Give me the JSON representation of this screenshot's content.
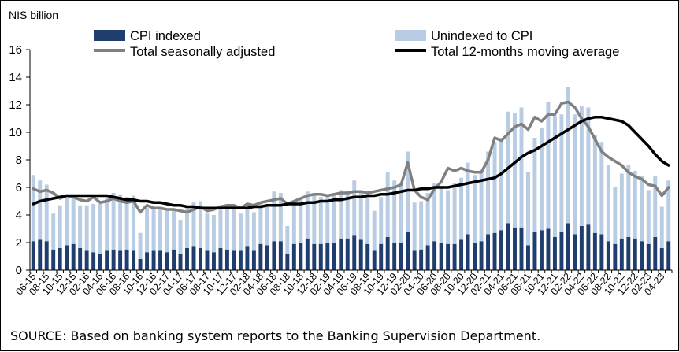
{
  "chart_data": {
    "type": "bar",
    "unit_label": "NIS billion",
    "ylim": [
      0,
      16
    ],
    "yticks": [
      "0",
      "2",
      "4",
      "6",
      "8",
      "10",
      "12",
      "14",
      "16"
    ],
    "x": [
      "06-15",
      "07-15",
      "08-15",
      "09-15",
      "10-15",
      "11-15",
      "12-15",
      "01-16",
      "02-16",
      "03-16",
      "04-16",
      "05-16",
      "06-16",
      "07-16",
      "08-16",
      "09-16",
      "10-16",
      "11-16",
      "12-16",
      "01-17",
      "02-17",
      "03-17",
      "04-17",
      "05-17",
      "06-17",
      "07-17",
      "08-17",
      "09-17",
      "10-17",
      "11-17",
      "12-17",
      "01-18",
      "02-18",
      "03-18",
      "04-18",
      "05-18",
      "06-18",
      "07-18",
      "08-18",
      "09-18",
      "10-18",
      "11-18",
      "12-18",
      "01-19",
      "02-19",
      "03-19",
      "04-19",
      "05-19",
      "06-19",
      "07-19",
      "08-19",
      "09-19",
      "10-19",
      "11-19",
      "12-19",
      "01-20",
      "02-20",
      "03-20",
      "04-20",
      "05-20",
      "06-20",
      "07-20",
      "08-20",
      "09-20",
      "10-20",
      "11-20",
      "12-20",
      "01-21",
      "02-21",
      "03-21",
      "04-21",
      "05-21",
      "06-21",
      "07-21",
      "08-21",
      "09-21",
      "10-21",
      "11-21",
      "12-21",
      "01-22",
      "02-22",
      "03-22",
      "04-22",
      "05-22",
      "06-22",
      "07-22",
      "08-22",
      "09-22",
      "10-22",
      "11-22",
      "12-22",
      "01-23",
      "02-23",
      "03-23",
      "04-23",
      "05-23"
    ],
    "xtick_labels": [
      "06-15",
      "08-15",
      "10-15",
      "12-15",
      "02-16",
      "04-16",
      "06-16",
      "08-16",
      "10-16",
      "12-16",
      "02-17",
      "04-17",
      "06-17",
      "08-17",
      "10-17",
      "12-17",
      "02-18",
      "04-18",
      "06-18",
      "08-18",
      "10-18",
      "12-18",
      "02-19",
      "04-19",
      "06-19",
      "08-19",
      "10-19",
      "12-19",
      "02-20",
      "04-20",
      "06-20",
      "08-20",
      "10-20",
      "12-20",
      "02-21",
      "04-21",
      "06-21",
      "08-21",
      "10-21",
      "12-21",
      "02-22",
      "04-22",
      "06-22",
      "08-22",
      "10-22",
      "12-22",
      "02-23",
      "04-23"
    ],
    "series": [
      {
        "name": "CPI indexed",
        "kind": "stacked-bar",
        "color": "#1f3d6e",
        "values": [
          2.1,
          2.2,
          2.1,
          1.5,
          1.6,
          1.8,
          1.9,
          1.6,
          1.4,
          1.3,
          1.2,
          1.4,
          1.5,
          1.4,
          1.5,
          1.4,
          0.8,
          1.3,
          1.4,
          1.4,
          1.3,
          1.5,
          1.2,
          1.6,
          1.7,
          1.6,
          1.4,
          1.3,
          1.6,
          1.5,
          1.4,
          1.4,
          1.7,
          1.4,
          1.9,
          1.8,
          2.1,
          2.1,
          1.2,
          1.9,
          2.0,
          2.3,
          1.9,
          1.9,
          2.0,
          2.0,
          2.3,
          2.3,
          2.5,
          2.2,
          1.9,
          1.4,
          1.9,
          2.4,
          2.0,
          2.0,
          2.8,
          1.4,
          1.5,
          1.8,
          2.1,
          2.0,
          1.9,
          1.9,
          2.2,
          2.6,
          2.0,
          2.1,
          2.6,
          2.7,
          2.9,
          3.4,
          3.1,
          3.1,
          1.8,
          2.8,
          2.9,
          3.0,
          2.4,
          2.8,
          3.4,
          2.6,
          3.2,
          3.3,
          2.7,
          2.6,
          2.1,
          1.9,
          2.3,
          2.4,
          2.3,
          2.1,
          1.9,
          2.4,
          1.6,
          2.1
        ]
      },
      {
        "name": "Unindexed to CPI",
        "kind": "stacked-bar",
        "color": "#b8cce4",
        "values": [
          4.8,
          4.3,
          4.1,
          2.6,
          3.1,
          3.4,
          3.3,
          3.1,
          3.3,
          3.5,
          3.6,
          3.8,
          4.1,
          4.1,
          3.8,
          4.0,
          1.9,
          3.2,
          3.1,
          3.1,
          3.0,
          2.9,
          2.4,
          2.9,
          3.2,
          3.4,
          2.7,
          2.7,
          3.1,
          3.2,
          3.3,
          2.7,
          2.9,
          2.8,
          2.9,
          3.0,
          3.6,
          3.5,
          2.0,
          3.0,
          3.1,
          3.4,
          3.6,
          3.4,
          3.3,
          3.5,
          3.5,
          3.4,
          4.0,
          3.6,
          3.4,
          2.9,
          3.4,
          4.7,
          4.5,
          4.3,
          5.8,
          3.5,
          3.5,
          3.8,
          4.2,
          4.1,
          3.9,
          4.4,
          4.5,
          5.2,
          4.9,
          5.1,
          6.0,
          6.6,
          6.7,
          8.1,
          8.3,
          8.7,
          5.3,
          6.8,
          7.4,
          9.2,
          8.8,
          8.5,
          9.9,
          8.7,
          8.7,
          8.5,
          7.1,
          6.7,
          5.5,
          4.1,
          4.7,
          5.2,
          4.9,
          4.7,
          3.9,
          4.4,
          3.0,
          4.4
        ]
      },
      {
        "name": "Total seasonally adjusted",
        "kind": "line",
        "color": "#808080",
        "values": [
          5.9,
          5.7,
          5.8,
          5.6,
          5.2,
          5.4,
          5.3,
          5.1,
          5.0,
          5.3,
          4.9,
          5.0,
          5.2,
          5.0,
          4.9,
          5.0,
          4.2,
          4.7,
          4.5,
          4.5,
          4.4,
          4.4,
          4.3,
          4.2,
          4.4,
          4.6,
          4.3,
          4.4,
          4.6,
          4.7,
          4.7,
          4.5,
          4.8,
          4.7,
          4.9,
          5.0,
          5.1,
          5.2,
          4.8,
          5.0,
          5.2,
          5.4,
          5.5,
          5.5,
          5.4,
          5.5,
          5.6,
          5.6,
          5.7,
          5.7,
          5.6,
          5.7,
          5.8,
          5.9,
          6.0,
          6.2,
          7.8,
          5.8,
          5.3,
          5.1,
          5.9,
          6.4,
          7.4,
          7.2,
          7.4,
          7.2,
          7.1,
          7.1,
          8.0,
          9.6,
          9.4,
          9.9,
          10.4,
          10.6,
          10.2,
          11.1,
          10.8,
          11.3,
          11.3,
          12.1,
          12.2,
          11.8,
          11.0,
          10.4,
          9.5,
          8.6,
          8.2,
          7.9,
          7.6,
          7.1,
          6.8,
          6.6,
          6.2,
          6.1,
          5.4,
          6.0
        ]
      },
      {
        "name": "Total 12-months moving average",
        "kind": "line",
        "color": "#000000",
        "values": [
          4.8,
          5.0,
          5.1,
          5.2,
          5.3,
          5.4,
          5.4,
          5.4,
          5.4,
          5.4,
          5.4,
          5.4,
          5.3,
          5.2,
          5.1,
          5.1,
          5.0,
          5.0,
          4.9,
          4.9,
          4.8,
          4.7,
          4.7,
          4.6,
          4.6,
          4.5,
          4.5,
          4.5,
          4.5,
          4.5,
          4.5,
          4.5,
          4.5,
          4.6,
          4.6,
          4.7,
          4.7,
          4.7,
          4.8,
          4.8,
          4.8,
          4.9,
          4.9,
          5.0,
          5.0,
          5.1,
          5.1,
          5.2,
          5.3,
          5.3,
          5.4,
          5.4,
          5.5,
          5.5,
          5.6,
          5.7,
          5.8,
          5.8,
          5.9,
          5.9,
          6.0,
          6.0,
          6.0,
          6.1,
          6.2,
          6.3,
          6.4,
          6.5,
          6.6,
          6.7,
          7.0,
          7.4,
          7.8,
          8.2,
          8.5,
          8.7,
          9.0,
          9.3,
          9.6,
          9.9,
          10.2,
          10.5,
          10.8,
          11.0,
          11.1,
          11.1,
          11.0,
          10.9,
          10.8,
          10.5,
          10.0,
          9.5,
          9.0,
          8.4,
          7.9,
          7.6
        ]
      }
    ],
    "legend_position": "top",
    "grid": false,
    "source_note": "SOURCE: Based on banking system reports to the Banking Supervision Department."
  }
}
